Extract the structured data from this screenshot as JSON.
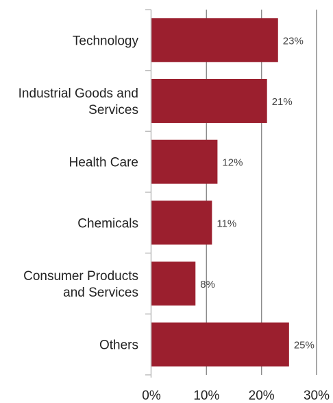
{
  "chart_data": {
    "type": "bar",
    "orientation": "horizontal",
    "title": "",
    "xlabel": "",
    "ylabel": "",
    "categories": [
      [
        "Technology"
      ],
      [
        "Industrial Goods and",
        "Services"
      ],
      [
        "Health Care"
      ],
      [
        "Chemicals"
      ],
      [
        "Consumer Products",
        "and Services"
      ],
      [
        "Others"
      ]
    ],
    "values": [
      23,
      21,
      12,
      11,
      8,
      25
    ],
    "data_labels": [
      "23%",
      "21%",
      "12%",
      "11%",
      "8%",
      "25%"
    ],
    "xlim": [
      0,
      30
    ],
    "xticks": [
      0,
      10,
      20,
      30
    ],
    "xtick_labels": [
      "0%",
      "10%",
      "20%",
      "30%"
    ],
    "grid": "vertical",
    "legend": "none",
    "colors": {
      "bar": "#9b1f2e",
      "grid": "#8c8c8c",
      "axis": "#bdbdbd"
    }
  }
}
